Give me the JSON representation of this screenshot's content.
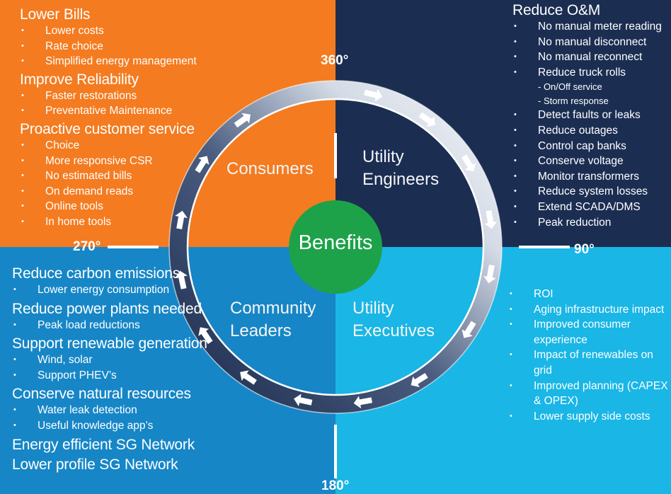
{
  "quadrant_colors": {
    "consumers": "#f47b20",
    "engineers": "#1b2e52",
    "community": "#1686c7",
    "executives": "#19b6e6",
    "benefits_circle": "#1da24a"
  },
  "degrees": {
    "top": "360°",
    "right": "90°",
    "bottom": "180°",
    "left": "270°"
  },
  "quadrants": {
    "consumers": "Consumers",
    "engineers_line1": "Utility",
    "engineers_line2": "Engineers",
    "community_line1": "Community",
    "community_line2": "Leaders",
    "executives_line1": "Utility",
    "executives_line2": "Executives"
  },
  "center": {
    "label": "Benefits"
  },
  "consumers_list": [
    {
      "heading": "Lower Bills",
      "items": [
        "Lower costs",
        "Rate choice",
        "Simplified energy management"
      ]
    },
    {
      "heading": "Improve Reliability",
      "items": [
        "Faster restorations",
        "Preventative Maintenance"
      ]
    },
    {
      "heading": "Proactive customer service",
      "items": [
        "Choice",
        "More responsive CSR",
        "No estimated bills",
        "On demand reads",
        "Online tools",
        "In home tools"
      ]
    }
  ],
  "engineers_list": {
    "heading": "Reduce O&M",
    "items": [
      {
        "text": "No manual meter reading",
        "sub": false
      },
      {
        "text": "No manual disconnect",
        "sub": false
      },
      {
        "text": "No manual reconnect",
        "sub": false
      },
      {
        "text": "Reduce truck rolls",
        "sub": false
      },
      {
        "text": "- On/Off service",
        "sub": true
      },
      {
        "text": "- Storm response",
        "sub": true
      },
      {
        "text": "Detect faults or leaks",
        "sub": false
      },
      {
        "text": "Reduce outages",
        "sub": false
      },
      {
        "text": "Control cap banks",
        "sub": false
      },
      {
        "text": "Conserve voltage",
        "sub": false
      },
      {
        "text": "Monitor transformers",
        "sub": false
      },
      {
        "text": "Reduce system losses",
        "sub": false
      },
      {
        "text": "Extend SCADA/DMS",
        "sub": false
      },
      {
        "text": "Peak reduction",
        "sub": false
      }
    ]
  },
  "community_list": [
    {
      "heading": "Reduce carbon emissions",
      "items": [
        "Lower energy consumption"
      ]
    },
    {
      "heading": "Reduce power plants needed",
      "items": [
        "Peak load reductions"
      ]
    },
    {
      "heading": "Support renewable generation",
      "items": [
        "Wind, solar",
        "Support PHEV’s"
      ]
    },
    {
      "heading": "Conserve natural resources",
      "items": [
        "Water leak detection",
        "Useful knowledge app’s"
      ]
    },
    {
      "heading": "Energy efficient SG Network",
      "items": []
    },
    {
      "heading": "Lower profile SG Network",
      "items": []
    }
  ],
  "executives_list": [
    "ROI",
    "Aging infrastructure impact",
    "Improved consumer experience",
    "Impact of renewables on grid",
    "Improved planning (CAPEX & OPEX)",
    "Lower supply side costs"
  ]
}
